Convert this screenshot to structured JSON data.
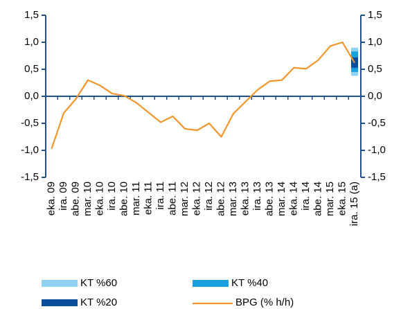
{
  "chart_data": {
    "type": "line",
    "categories": [
      "eka. 09",
      "ira. 09",
      "abe. 09",
      "mar. 10",
      "eka. 10",
      "ira. 10",
      "abe. 10",
      "mar. 11",
      "eka. 11",
      "ira. 11",
      "abe. 11",
      "mar. 12",
      "eka. 12",
      "ira. 12",
      "abe. 12",
      "mar. 13",
      "eka. 13",
      "ira. 13",
      "abe. 13",
      "mar. 14",
      "eka. 14",
      "ira. 14",
      "abe. 14",
      "mar. 15",
      "eka. 15",
      "ira. 15 (a)"
    ],
    "series": [
      {
        "name": "BPG (% h/h)",
        "color": "#f0962a",
        "values": [
          -0.97,
          -0.31,
          -0.05,
          0.3,
          0.2,
          0.05,
          0.01,
          -0.12,
          -0.3,
          -0.48,
          -0.37,
          -0.6,
          -0.63,
          -0.5,
          -0.75,
          -0.32,
          -0.1,
          0.12,
          0.28,
          0.3,
          0.53,
          0.51,
          0.67,
          0.93,
          1.0,
          0.62
        ]
      }
    ],
    "fan": [
      {
        "name": "KT %60",
        "color": "#8fd3f0",
        "low": 0.38,
        "high": 0.9
      },
      {
        "name": "KT %40",
        "color": "#1aa0e0",
        "low": 0.45,
        "high": 0.83
      },
      {
        "name": "KT %20",
        "color": "#0a4f9e",
        "low": 0.53,
        "high": 0.72
      }
    ],
    "ylim": [
      -1.5,
      1.5
    ],
    "yticks": [
      {
        "value": -1.5,
        "label": "-1,5"
      },
      {
        "value": -1.0,
        "label": "-1,0"
      },
      {
        "value": -0.5,
        "label": "-0,5"
      },
      {
        "value": 0,
        "label": "0,0"
      },
      {
        "value": 0.5,
        "label": "0,5"
      },
      {
        "value": 1.0,
        "label": "1,0"
      },
      {
        "value": 1.5,
        "label": "1,5"
      }
    ],
    "y2lim": [
      -1.5,
      1.5
    ],
    "y2ticks": [
      {
        "value": -1.5,
        "label": "-1,5"
      },
      {
        "value": -1.0,
        "label": "-1,0"
      },
      {
        "value": -0.5,
        "label": "-0,5"
      },
      {
        "value": 0,
        "label": "0,0"
      },
      {
        "value": 0.5,
        "label": "0,5"
      },
      {
        "value": 1.0,
        "label": "1,0"
      },
      {
        "value": 1.5,
        "label": "1,5"
      }
    ],
    "axis_color": "#1f4e8c"
  }
}
